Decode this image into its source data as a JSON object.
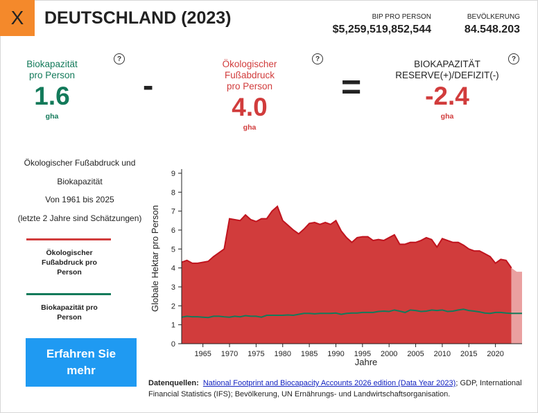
{
  "header": {
    "close_label": "X",
    "country": "DEUTSCHLAND (2023)",
    "gdp_label": "BIP PRO PERSON",
    "gdp_value": "$5,259,519,852,544",
    "pop_label": "BEVÖLKERUNG",
    "pop_value": "84.548.203"
  },
  "metrics": {
    "biocap_label_1": "Biokapazität",
    "biocap_label_2": "pro Person",
    "biocap_value": "1.6",
    "biocap_unit": "gha",
    "footprint_label_1": "Ökologischer",
    "footprint_label_2": "Fußabdruck",
    "footprint_label_3": "pro Person",
    "footprint_value": "4.0",
    "footprint_unit": "gha",
    "reserve_label_1": "BIOKAPAZITÄT",
    "reserve_label_2": "RESERVE(+)/DEFIZIT(-)",
    "reserve_value": "-2.4",
    "reserve_unit": "gha",
    "minus_sign": "-",
    "equals_sign": "=",
    "help_glyph": "?"
  },
  "description": {
    "line1": "Ökologischer Fußabdruck und",
    "line2": "Biokapazität",
    "line3": "Von 1961 bis 2025",
    "line4": "(letzte 2 Jahre sind Schätzungen)"
  },
  "legend": {
    "footprint_1": "Ökologischer",
    "footprint_2": "Fußabdruck pro",
    "footprint_3": "Person",
    "biocap_1": "Biokapazität pro",
    "biocap_2": "Person"
  },
  "learn_more": {
    "line1": "Erfahren Sie",
    "line2": "mehr"
  },
  "sources": {
    "label": "Datenquellen:",
    "link": "National Footprint and Biocapacity Accounts 2026 edition (Data Year 2023)",
    "rest": "; GDP, International Financial Statistics (IFS); Bevölkerung, UN Ernährungs- und Landwirtschaftsorganisation."
  },
  "colors": {
    "footprint": "#d13c3c",
    "footprint_line": "#c0141e",
    "biocapacity": "#137a5a",
    "estimate": "#eaa0a0",
    "accent_close": "#f4892b",
    "button": "#1f9af2"
  },
  "chart_data": {
    "type": "area",
    "xlabel": "Jahre",
    "ylabel": "Globale Hektar pro Person",
    "xlim": [
      1961,
      2025
    ],
    "ylim": [
      0,
      9
    ],
    "yticks": [
      0,
      1,
      2,
      3,
      4,
      5,
      6,
      7,
      8,
      9
    ],
    "xticks": [
      1965,
      1970,
      1975,
      1980,
      1985,
      1990,
      1995,
      2000,
      2005,
      2010,
      2015,
      2020
    ],
    "estimate_years": [
      2024,
      2025
    ],
    "series": [
      {
        "name": "Ökologischer Fußabdruck pro Person",
        "x": [
          1961,
          1962,
          1963,
          1964,
          1965,
          1966,
          1967,
          1968,
          1969,
          1970,
          1971,
          1972,
          1973,
          1974,
          1975,
          1976,
          1977,
          1978,
          1979,
          1980,
          1981,
          1982,
          1983,
          1984,
          1985,
          1986,
          1987,
          1988,
          1989,
          1990,
          1991,
          1992,
          1993,
          1994,
          1995,
          1996,
          1997,
          1998,
          1999,
          2000,
          2001,
          2002,
          2003,
          2004,
          2005,
          2006,
          2007,
          2008,
          2009,
          2010,
          2011,
          2012,
          2013,
          2014,
          2015,
          2016,
          2017,
          2018,
          2019,
          2020,
          2021,
          2022,
          2023,
          2024,
          2025
        ],
        "values": [
          4.3,
          4.4,
          4.25,
          4.25,
          4.3,
          4.35,
          4.6,
          4.8,
          5.0,
          6.6,
          6.55,
          6.5,
          6.8,
          6.55,
          6.45,
          6.6,
          6.6,
          7.0,
          7.25,
          6.5,
          6.25,
          6.0,
          5.8,
          6.05,
          6.35,
          6.4,
          6.3,
          6.4,
          6.3,
          6.5,
          5.95,
          5.6,
          5.35,
          5.6,
          5.65,
          5.65,
          5.45,
          5.5,
          5.45,
          5.6,
          5.75,
          5.25,
          5.25,
          5.35,
          5.35,
          5.45,
          5.6,
          5.5,
          5.1,
          5.55,
          5.45,
          5.35,
          5.35,
          5.2,
          5.0,
          4.9,
          4.9,
          4.75,
          4.6,
          4.25,
          4.45,
          4.4,
          4.0,
          3.8,
          3.8
        ]
      },
      {
        "name": "Biokapazität pro Person",
        "x": [
          1961,
          1962,
          1963,
          1964,
          1965,
          1966,
          1967,
          1968,
          1969,
          1970,
          1971,
          1972,
          1973,
          1974,
          1975,
          1976,
          1977,
          1978,
          1979,
          1980,
          1981,
          1982,
          1983,
          1984,
          1985,
          1986,
          1987,
          1988,
          1989,
          1990,
          1991,
          1992,
          1993,
          1994,
          1995,
          1996,
          1997,
          1998,
          1999,
          2000,
          2001,
          2002,
          2003,
          2004,
          2005,
          2006,
          2007,
          2008,
          2009,
          2010,
          2011,
          2012,
          2013,
          2014,
          2015,
          2016,
          2017,
          2018,
          2019,
          2020,
          2021,
          2022,
          2023,
          2024,
          2025
        ],
        "values": [
          1.4,
          1.45,
          1.42,
          1.42,
          1.4,
          1.38,
          1.45,
          1.45,
          1.42,
          1.4,
          1.45,
          1.42,
          1.48,
          1.45,
          1.45,
          1.4,
          1.5,
          1.5,
          1.5,
          1.5,
          1.52,
          1.5,
          1.55,
          1.6,
          1.6,
          1.58,
          1.6,
          1.6,
          1.6,
          1.62,
          1.55,
          1.6,
          1.62,
          1.62,
          1.65,
          1.65,
          1.65,
          1.7,
          1.72,
          1.7,
          1.78,
          1.72,
          1.65,
          1.78,
          1.75,
          1.7,
          1.72,
          1.78,
          1.75,
          1.78,
          1.7,
          1.72,
          1.78,
          1.82,
          1.75,
          1.72,
          1.68,
          1.62,
          1.6,
          1.65,
          1.65,
          1.62,
          1.6,
          1.6,
          1.6
        ]
      }
    ]
  }
}
